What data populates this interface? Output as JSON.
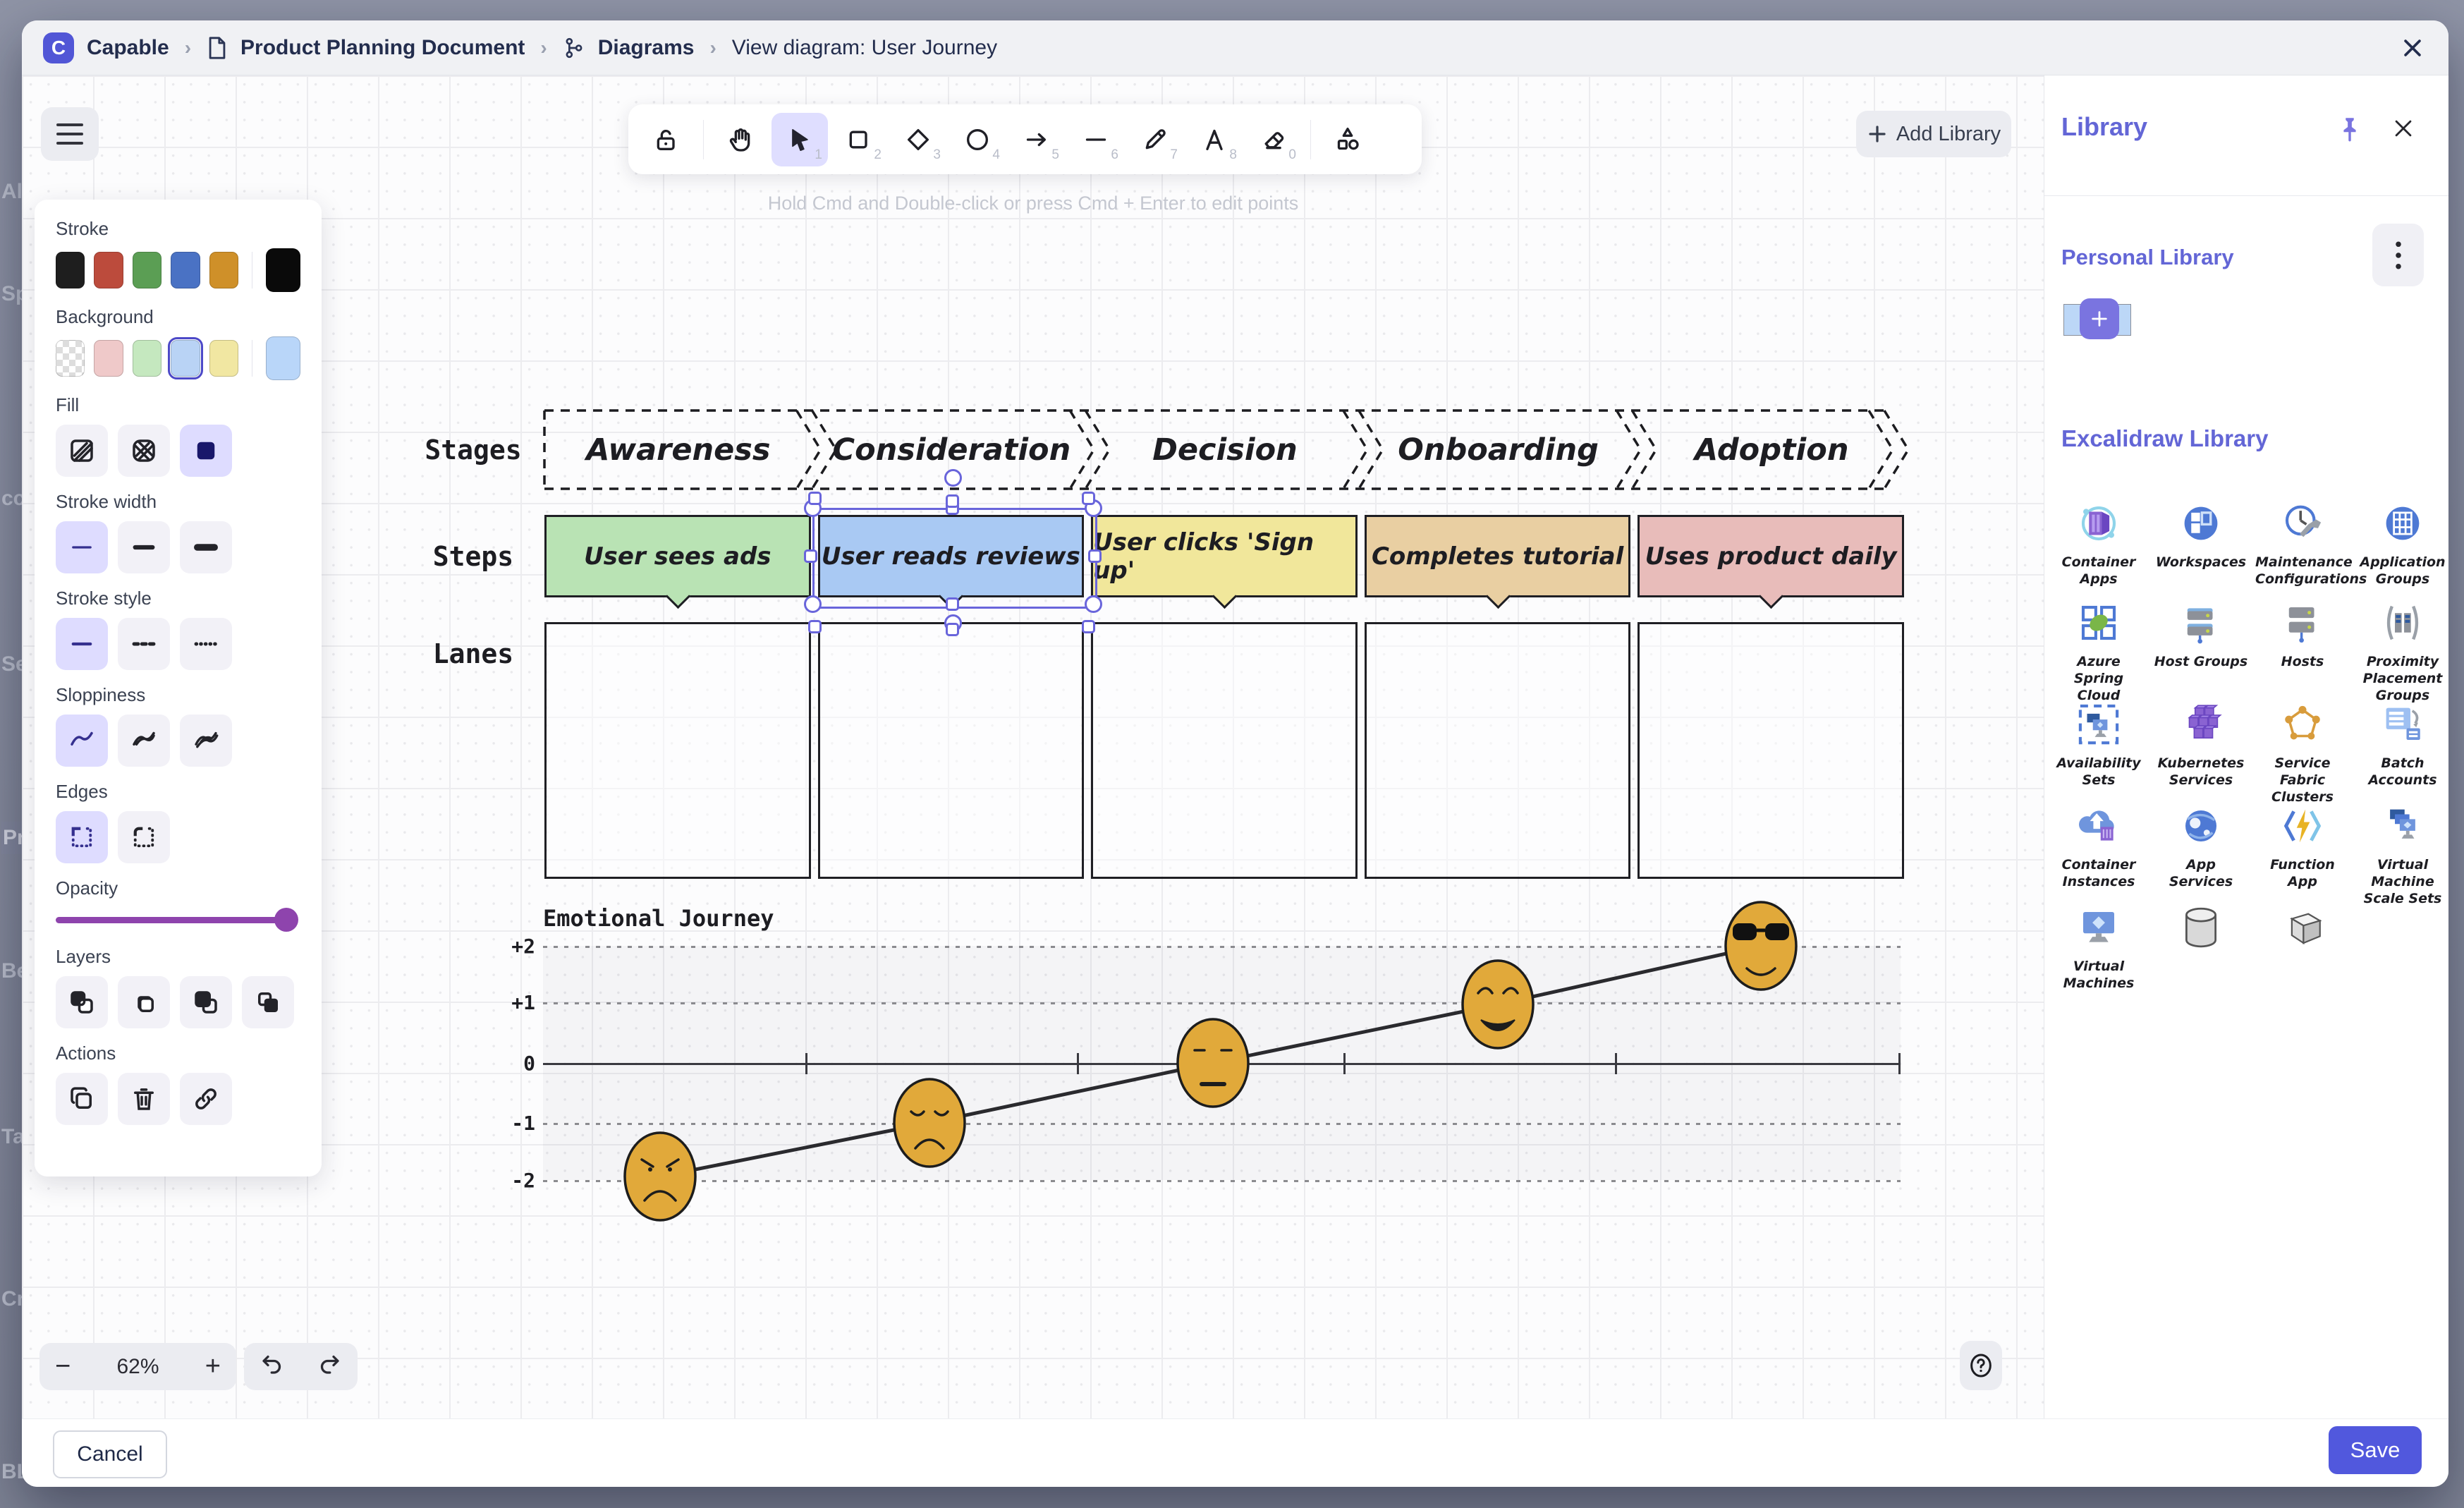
{
  "app": {
    "name": "Capable",
    "logo_letter": "C"
  },
  "breadcrumb": {
    "items": [
      "Capable",
      "Product Planning Document",
      "Diagrams",
      "View diagram: User Journey"
    ]
  },
  "background_page_fragments": [
    "Al",
    "Sp",
    "cc",
    "Se",
    "Pr",
    "Be",
    "Ta",
    "Cr",
    "BL"
  ],
  "toolbar": {
    "hint": "Hold Cmd and Double-click or press Cmd + Enter to edit points",
    "add_library_label": "Add Library",
    "tools": [
      {
        "name": "lock",
        "shortcut": "",
        "active": false
      },
      {
        "name": "hand",
        "shortcut": "",
        "active": false
      },
      {
        "name": "select",
        "shortcut": "1",
        "active": true
      },
      {
        "name": "rectangle",
        "shortcut": "2",
        "active": false
      },
      {
        "name": "diamond",
        "shortcut": "3",
        "active": false
      },
      {
        "name": "ellipse",
        "shortcut": "4",
        "active": false
      },
      {
        "name": "arrow",
        "shortcut": "5",
        "active": false
      },
      {
        "name": "line",
        "shortcut": "6",
        "active": false
      },
      {
        "name": "draw",
        "shortcut": "7",
        "active": false
      },
      {
        "name": "text",
        "shortcut": "8",
        "active": false
      },
      {
        "name": "eraser",
        "shortcut": "0",
        "active": false
      },
      {
        "name": "shapes",
        "shortcut": "",
        "active": false
      }
    ]
  },
  "properties": {
    "stroke": {
      "label": "Stroke",
      "colors": [
        "#1e1e1e",
        "#bc4b3c",
        "#5b9e54",
        "#4a72c4",
        "#cf9029"
      ],
      "current": "#0a0a0a"
    },
    "background": {
      "label": "Background",
      "colors": [
        "transparent",
        "#efc9c9",
        "#c5e8bf",
        "#b9d3f5",
        "#f1e7a2"
      ],
      "selected_index": 3,
      "current": "#b9d6f9"
    },
    "fill": {
      "label": "Fill",
      "options": [
        "hachure",
        "cross-hatch",
        "solid"
      ],
      "selected_index": 2
    },
    "stroke_width": {
      "label": "Stroke width",
      "options": [
        "thin",
        "bold",
        "extra-bold"
      ],
      "selected_index": 0
    },
    "stroke_style": {
      "label": "Stroke style",
      "options": [
        "solid",
        "dashed",
        "dotted"
      ],
      "selected_index": 0
    },
    "sloppiness": {
      "label": "Sloppiness",
      "options": [
        "architect",
        "artist",
        "cartoonist"
      ],
      "selected_index": 0
    },
    "edges": {
      "label": "Edges",
      "options": [
        "sharp",
        "round"
      ],
      "selected_index": 0
    },
    "opacity": {
      "label": "Opacity",
      "value": 100
    },
    "layers": {
      "label": "Layers",
      "options": [
        "send-to-back",
        "send-backward",
        "bring-forward",
        "bring-to-front"
      ]
    },
    "actions": {
      "label": "Actions",
      "options": [
        "duplicate",
        "delete",
        "link"
      ]
    }
  },
  "canvas": {
    "row_labels": {
      "stages": "Stages",
      "steps": "Steps",
      "lanes": "Lanes"
    },
    "stages": [
      "Awareness",
      "Consideration",
      "Decision",
      "Onboarding",
      "Adoption"
    ],
    "selected_stage_index": 1,
    "steps": [
      {
        "label": "User sees ads",
        "color": "#b9e3b4"
      },
      {
        "label": "User reads reviews",
        "color": "#a9c9f3",
        "selected": true
      },
      {
        "label": "User clicks 'Sign up'",
        "color": "#f1e79b"
      },
      {
        "label": "Completes tutorial",
        "color": "#e9cfa2"
      },
      {
        "label": "Uses product daily",
        "color": "#e8bcba"
      }
    ],
    "chart_title": "Emotional Journey",
    "y_axis_labels": [
      "+2",
      "+1",
      "0",
      "-1",
      "-2"
    ]
  },
  "chart_data": {
    "type": "line",
    "title": "Emotional Journey",
    "categories": [
      "Awareness",
      "Consideration",
      "Decision",
      "Onboarding",
      "Adoption"
    ],
    "values": [
      -2,
      -1,
      0,
      1,
      2
    ],
    "point_markers": [
      "angry-face",
      "sad-face",
      "neutral-face",
      "happy-face",
      "cool-face"
    ],
    "ylim": [
      -2,
      2
    ],
    "grid": "dotted horizontal lines at each integer, solid zero axis with ticks",
    "legend": "none"
  },
  "zoombar": {
    "zoom_out": "−",
    "level": "62%",
    "zoom_in": "+"
  },
  "help_label": "?",
  "library": {
    "title": "Library",
    "personal_title": "Personal Library",
    "excalidraw_title": "Excalidraw Library",
    "items": [
      {
        "icon": "container-apps",
        "label": "Container Apps"
      },
      {
        "icon": "workspaces",
        "label": "Workspaces"
      },
      {
        "icon": "maintenance-configurations",
        "label": "Maintenance Configurations"
      },
      {
        "icon": "application-groups",
        "label": "Application Groups"
      },
      {
        "icon": "azure-spring-cloud",
        "label": "Azure Spring Cloud"
      },
      {
        "icon": "host-groups",
        "label": "Host Groups"
      },
      {
        "icon": "hosts",
        "label": "Hosts"
      },
      {
        "icon": "proximity-placement-groups",
        "label": "Proximity Placement Groups"
      },
      {
        "icon": "availability-sets",
        "label": "Availability Sets"
      },
      {
        "icon": "kubernetes-services",
        "label": "Kubernetes Services"
      },
      {
        "icon": "service-fabric-clusters",
        "label": "Service Fabric Clusters"
      },
      {
        "icon": "batch-accounts",
        "label": "Batch Accounts"
      },
      {
        "icon": "container-instances",
        "label": "Container Instances"
      },
      {
        "icon": "app-services",
        "label": "App Services"
      },
      {
        "icon": "function-app",
        "label": "Function App"
      },
      {
        "icon": "virtual-machine-scale-sets",
        "label": "Virtual Machine Scale Sets"
      },
      {
        "icon": "virtual-machines",
        "label": "Virtual Machines"
      },
      {
        "icon": "cylinder",
        "label": ""
      },
      {
        "icon": "cube",
        "label": ""
      }
    ]
  },
  "footer": {
    "cancel_label": "Cancel",
    "save_label": "Save"
  },
  "colors": {
    "accent": "#5156d6",
    "library_accent": "#6366d6",
    "selection": "#6965db",
    "opacity_slider": "#8e44ad",
    "save_button": "#5158dd"
  }
}
